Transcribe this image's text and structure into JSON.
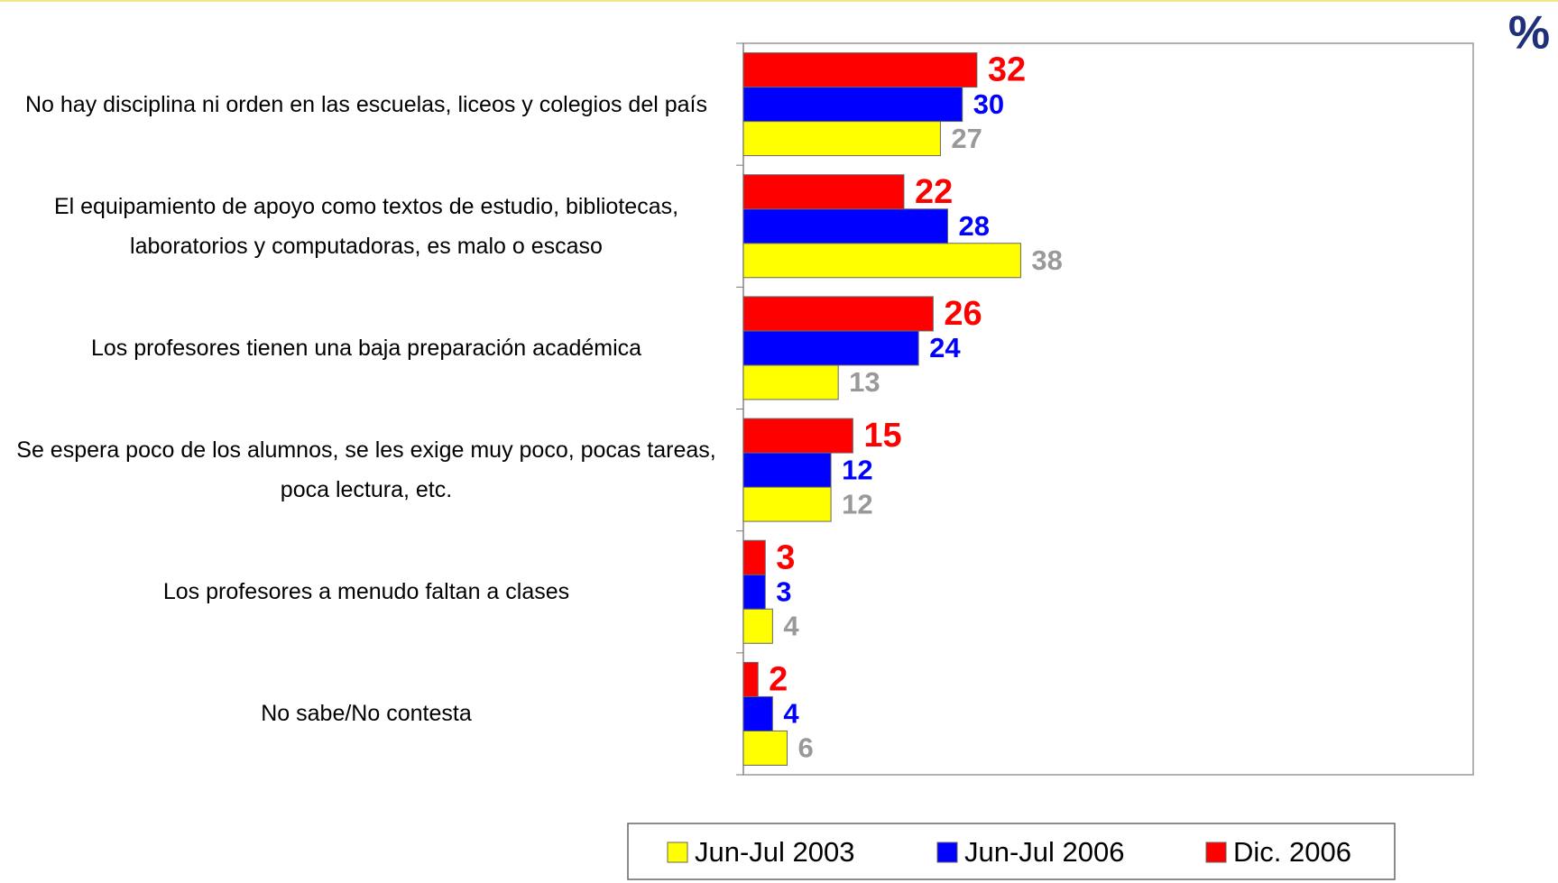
{
  "chart_data": {
    "type": "bar",
    "orientation": "horizontal",
    "unit_label": "%",
    "categories": [
      "No hay disciplina ni orden en las escuelas, liceos y colegios del país",
      "El equipamiento de apoyo como textos de estudio, bibliotecas, laboratorios y computadoras, es malo o escaso",
      "Los profesores tienen una baja preparación académica",
      "Se espera poco de los alumnos, se les exige muy poco, pocas tareas, poca lectura, etc.",
      "Los profesores a menudo faltan a clases",
      "No sabe/No contesta"
    ],
    "series": [
      {
        "name": "Jun-Jul 2003",
        "color": "#ffff00",
        "label_color": "#999999",
        "values": [
          27,
          38,
          13,
          12,
          4,
          6
        ]
      },
      {
        "name": "Jun-Jul 2006",
        "color": "#0000ff",
        "label_color": "#0000ff",
        "values": [
          30,
          28,
          24,
          12,
          3,
          4
        ]
      },
      {
        "name": "Dic. 2006",
        "color": "#ff0000",
        "label_color": "#ff0000",
        "values": [
          32,
          22,
          26,
          15,
          3,
          2
        ]
      }
    ],
    "xlim": [
      0,
      100
    ],
    "legend": "bottom"
  }
}
